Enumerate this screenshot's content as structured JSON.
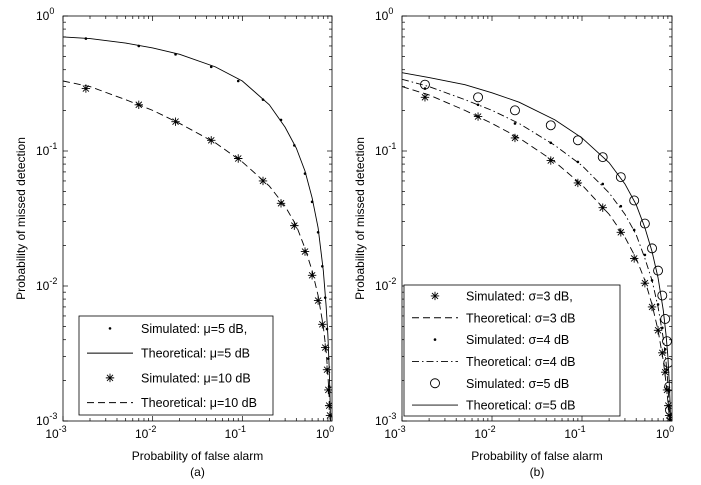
{
  "chart_data": [
    {
      "type": "line",
      "panel_label": "(a)",
      "xlabel": "Probability of false alarm",
      "ylabel": "Probability of missed detection",
      "xscale": "log",
      "yscale": "log",
      "xlim": [
        0.001,
        1
      ],
      "ylim": [
        0.001,
        1
      ],
      "x_ticks": [
        {
          "base": "10",
          "exp": "-3"
        },
        {
          "base": "10",
          "exp": "-2"
        },
        {
          "base": "10",
          "exp": "-1"
        },
        {
          "base": "10",
          "exp": "0"
        }
      ],
      "y_ticks": [
        {
          "base": "10",
          "exp": "-3"
        },
        {
          "base": "10",
          "exp": "-2"
        },
        {
          "base": "10",
          "exp": "-1"
        },
        {
          "base": "10",
          "exp": "0"
        }
      ],
      "grid": false,
      "legend_position": "bottom-right",
      "series": [
        {
          "name": "Simulated: μ=5 dB,",
          "marker": "dot",
          "line": "none",
          "x": [
            0.0018,
            0.007,
            0.018,
            0.045,
            0.09,
            0.17,
            0.27,
            0.38,
            0.5,
            0.6,
            0.7,
            0.78,
            0.84,
            0.88,
            0.91,
            0.93,
            0.95
          ],
          "y": [
            0.68,
            0.6,
            0.52,
            0.42,
            0.33,
            0.24,
            0.17,
            0.11,
            0.068,
            0.042,
            0.025,
            0.014,
            0.0082,
            0.0048,
            0.0029,
            0.0018,
            0.0011
          ]
        },
        {
          "name": "Theoretical:  μ=5 dB",
          "marker": "none",
          "line": "solid",
          "x": [
            0.001,
            0.002,
            0.005,
            0.01,
            0.02,
            0.05,
            0.1,
            0.2,
            0.3,
            0.4,
            0.5,
            0.6,
            0.7,
            0.8,
            0.86,
            0.9,
            0.93,
            0.95,
            0.97
          ],
          "y": [
            0.7,
            0.68,
            0.63,
            0.58,
            0.52,
            0.42,
            0.33,
            0.22,
            0.15,
            0.105,
            0.071,
            0.045,
            0.027,
            0.013,
            0.0071,
            0.0043,
            0.0025,
            0.0015,
            0.0008
          ]
        },
        {
          "name": "Simulated: μ=10 dB",
          "marker": "asterisk",
          "line": "none",
          "x": [
            0.0018,
            0.007,
            0.018,
            0.045,
            0.09,
            0.17,
            0.27,
            0.38,
            0.5,
            0.6,
            0.7,
            0.78,
            0.84,
            0.88,
            0.91,
            0.93,
            0.95
          ],
          "y": [
            0.29,
            0.22,
            0.165,
            0.12,
            0.088,
            0.06,
            0.041,
            0.028,
            0.018,
            0.012,
            0.0078,
            0.0052,
            0.0035,
            0.0024,
            0.0017,
            0.0013,
            0.0011
          ]
        },
        {
          "name": "Theoretical:  μ=10 dB",
          "marker": "none",
          "line": "dashed",
          "x": [
            0.001,
            0.002,
            0.005,
            0.01,
            0.02,
            0.05,
            0.1,
            0.2,
            0.3,
            0.4,
            0.5,
            0.6,
            0.7,
            0.8,
            0.86,
            0.9,
            0.93,
            0.95,
            0.97
          ],
          "y": [
            0.33,
            0.3,
            0.24,
            0.2,
            0.16,
            0.115,
            0.083,
            0.055,
            0.039,
            0.028,
            0.019,
            0.013,
            0.0085,
            0.005,
            0.0033,
            0.0022,
            0.0015,
            0.0011,
            0.0008
          ]
        }
      ]
    },
    {
      "type": "line",
      "panel_label": "(b)",
      "xlabel": "Probability of false alarm",
      "ylabel": "Probability of missed detection",
      "xscale": "log",
      "yscale": "log",
      "xlim": [
        0.001,
        1
      ],
      "ylim": [
        0.001,
        1
      ],
      "x_ticks": [
        {
          "base": "10",
          "exp": "-3"
        },
        {
          "base": "10",
          "exp": "-2"
        },
        {
          "base": "10",
          "exp": "-1"
        },
        {
          "base": "10",
          "exp": "0"
        }
      ],
      "y_ticks": [
        {
          "base": "10",
          "exp": "-3"
        },
        {
          "base": "10",
          "exp": "-2"
        },
        {
          "base": "10",
          "exp": "-1"
        },
        {
          "base": "10",
          "exp": "0"
        }
      ],
      "grid": false,
      "legend_position": "bottom-left",
      "series": [
        {
          "name": "Simulated: σ=3 dB,",
          "marker": "asterisk",
          "line": "none",
          "x": [
            0.0018,
            0.007,
            0.018,
            0.045,
            0.09,
            0.17,
            0.27,
            0.38,
            0.5,
            0.6,
            0.7,
            0.78,
            0.84,
            0.88,
            0.91,
            0.93,
            0.95
          ],
          "y": [
            0.25,
            0.18,
            0.125,
            0.085,
            0.058,
            0.038,
            0.025,
            0.016,
            0.0105,
            0.007,
            0.0047,
            0.0032,
            0.0023,
            0.0017,
            0.0013,
            0.0011,
            0.001
          ]
        },
        {
          "name": "Theoretical:  σ=3 dB",
          "marker": "none",
          "line": "dashed",
          "x": [
            0.001,
            0.002,
            0.005,
            0.01,
            0.02,
            0.05,
            0.1,
            0.2,
            0.3,
            0.4,
            0.5,
            0.6,
            0.7,
            0.8,
            0.86,
            0.9,
            0.93,
            0.95
          ],
          "y": [
            0.3,
            0.26,
            0.2,
            0.16,
            0.125,
            0.083,
            0.056,
            0.034,
            0.023,
            0.016,
            0.011,
            0.0073,
            0.0047,
            0.0028,
            0.0019,
            0.0014,
            0.0011,
            0.0009
          ]
        },
        {
          "name": "Simulated: σ=4 dB",
          "marker": "dot",
          "line": "none",
          "x": [
            0.0018,
            0.007,
            0.018,
            0.045,
            0.09,
            0.17,
            0.27,
            0.38,
            0.5,
            0.6,
            0.7,
            0.78,
            0.84,
            0.88,
            0.91,
            0.93,
            0.95
          ],
          "y": [
            0.29,
            0.22,
            0.16,
            0.115,
            0.083,
            0.057,
            0.039,
            0.026,
            0.017,
            0.011,
            0.0073,
            0.0049,
            0.0034,
            0.0024,
            0.0017,
            0.0013,
            0.0011
          ]
        },
        {
          "name": "Theoretical:  σ=4 dB",
          "marker": "none",
          "line": "dashdot",
          "x": [
            0.001,
            0.002,
            0.005,
            0.01,
            0.02,
            0.05,
            0.1,
            0.2,
            0.3,
            0.4,
            0.5,
            0.6,
            0.7,
            0.8,
            0.86,
            0.9,
            0.93,
            0.95
          ],
          "y": [
            0.34,
            0.3,
            0.24,
            0.2,
            0.16,
            0.11,
            0.078,
            0.049,
            0.034,
            0.024,
            0.016,
            0.011,
            0.007,
            0.0041,
            0.0027,
            0.0019,
            0.0013,
            0.001
          ]
        },
        {
          "name": "Simulated: σ=5 dB",
          "marker": "circle",
          "line": "none",
          "x": [
            0.0018,
            0.007,
            0.018,
            0.045,
            0.09,
            0.17,
            0.27,
            0.38,
            0.5,
            0.6,
            0.7,
            0.78,
            0.84,
            0.88,
            0.91,
            0.93,
            0.95
          ],
          "y": [
            0.31,
            0.25,
            0.2,
            0.155,
            0.12,
            0.09,
            0.064,
            0.043,
            0.029,
            0.019,
            0.013,
            0.0085,
            0.0057,
            0.0039,
            0.0027,
            0.0018,
            0.0012
          ]
        },
        {
          "name": "Theoretical:  σ=5 dB",
          "marker": "none",
          "line": "solid",
          "x": [
            0.001,
            0.002,
            0.005,
            0.01,
            0.02,
            0.05,
            0.1,
            0.2,
            0.3,
            0.4,
            0.5,
            0.6,
            0.7,
            0.8,
            0.86,
            0.9,
            0.93,
            0.95,
            0.97
          ],
          "y": [
            0.38,
            0.35,
            0.31,
            0.27,
            0.23,
            0.17,
            0.125,
            0.082,
            0.057,
            0.04,
            0.027,
            0.018,
            0.0115,
            0.0066,
            0.0043,
            0.003,
            0.002,
            0.0014,
            0.0009
          ]
        }
      ]
    }
  ]
}
